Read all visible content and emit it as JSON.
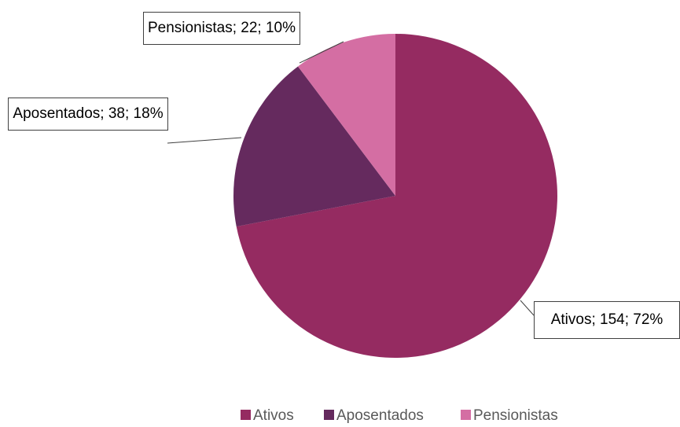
{
  "chart_data": {
    "type": "pie",
    "categories": [
      "Ativos",
      "Aposentados",
      "Pensionistas"
    ],
    "values": [
      154,
      38,
      22
    ],
    "value_labels": [
      "Ativos; 154; 72%",
      "Aposentados; 38; 18%",
      "Pensionistas; 22; 10%"
    ],
    "colors": [
      "#952b61",
      "#652a5e",
      "#d46ea3"
    ],
    "legend": "bottom"
  }
}
